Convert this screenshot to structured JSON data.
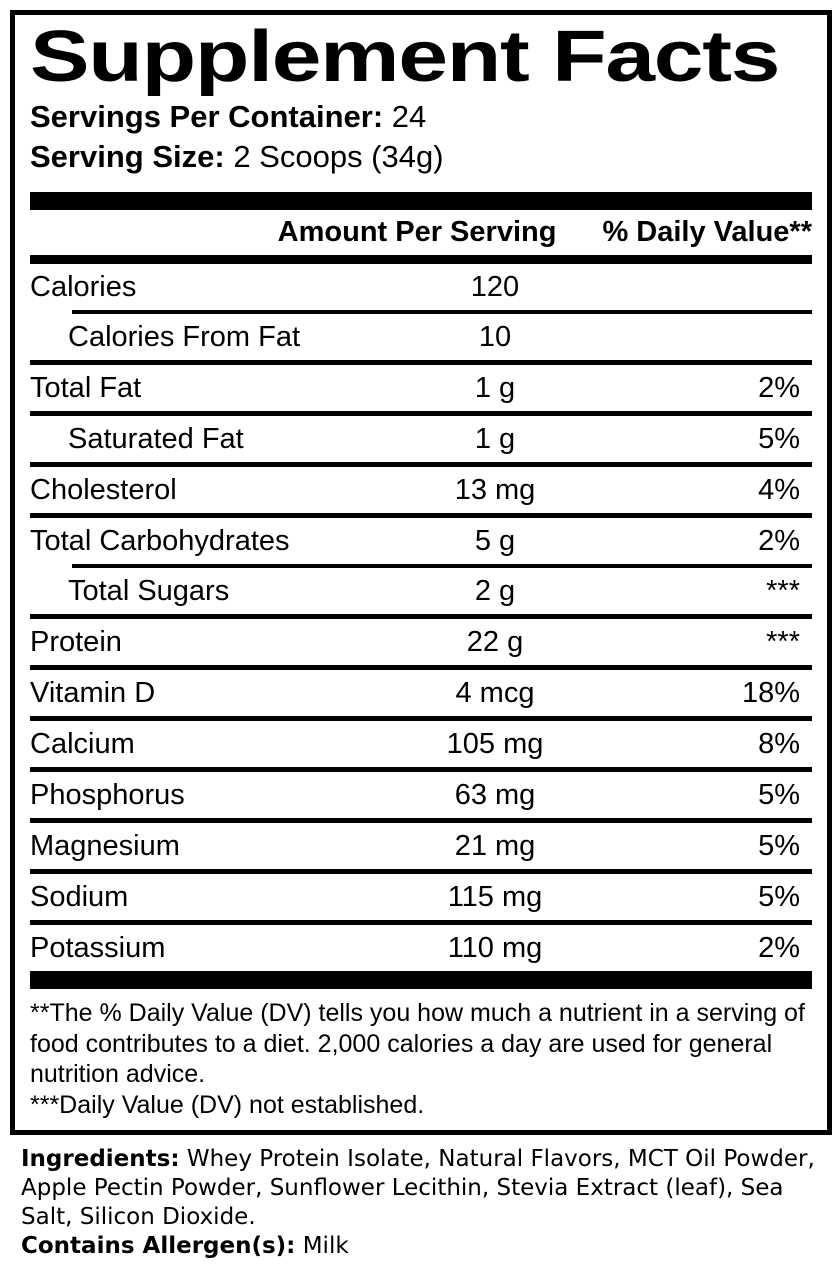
{
  "title": "Supplement Facts",
  "servings_per_container": {
    "label": "Servings Per Container:",
    "value": "24"
  },
  "serving_size": {
    "label": "Serving Size:",
    "value": "2 Scoops (34g)"
  },
  "table": {
    "headers": {
      "amount": "Amount Per Serving",
      "daily_value": "% Daily Value**"
    },
    "rows": [
      {
        "name": "Calories",
        "amount": "120",
        "dv": "",
        "indent": false,
        "divider_above": "none"
      },
      {
        "name": "Calories From Fat",
        "amount": "10",
        "dv": "",
        "indent": true,
        "divider_above": "indented"
      },
      {
        "name": "Total Fat",
        "amount": "1 g",
        "dv": "2%",
        "indent": false,
        "divider_above": "full"
      },
      {
        "name": "Saturated Fat",
        "amount": "1 g",
        "dv": "5%",
        "indent": true,
        "divider_above": "full"
      },
      {
        "name": "Cholesterol",
        "amount": "13 mg",
        "dv": "4%",
        "indent": false,
        "divider_above": "full"
      },
      {
        "name": "Total Carbohydrates",
        "amount": "5 g",
        "dv": "2%",
        "indent": false,
        "divider_above": "full"
      },
      {
        "name": "Total Sugars",
        "amount": "2 g",
        "dv": "***",
        "indent": true,
        "divider_above": "indented"
      },
      {
        "name": "Protein",
        "amount": "22 g",
        "dv": "***",
        "indent": false,
        "divider_above": "full"
      },
      {
        "name": "Vitamin D",
        "amount": "4 mcg",
        "dv": "18%",
        "indent": false,
        "divider_above": "full"
      },
      {
        "name": "Calcium",
        "amount": "105 mg",
        "dv": "8%",
        "indent": false,
        "divider_above": "full"
      },
      {
        "name": "Phosphorus",
        "amount": "63 mg",
        "dv": "5%",
        "indent": false,
        "divider_above": "full"
      },
      {
        "name": "Magnesium",
        "amount": "21 mg",
        "dv": "5%",
        "indent": false,
        "divider_above": "full"
      },
      {
        "name": "Sodium",
        "amount": "115 mg",
        "dv": "5%",
        "indent": false,
        "divider_above": "full"
      },
      {
        "name": "Potassium",
        "amount": "110 mg",
        "dv": "2%",
        "indent": false,
        "divider_above": "full"
      }
    ]
  },
  "footnotes": {
    "daily_value_note": "**The % Daily Value (DV) tells you how much a nutrient in a serving of food contributes to a diet. 2,000 calories a day are used for general nutrition advice.",
    "not_established_note": "***Daily Value (DV) not established."
  },
  "ingredients": {
    "label": "Ingredients:",
    "value": "Whey Protein Isolate, Natural Flavors, MCT Oil Powder, Apple Pectin Powder, Sunflower Lecithin, Stevia Extract (leaf), Sea Salt, Silicon Dioxide."
  },
  "allergens": {
    "label": "Contains Allergen(s):",
    "value": "Milk"
  },
  "colors": {
    "text": "#000000",
    "background": "#ffffff",
    "rule": "#000000"
  }
}
